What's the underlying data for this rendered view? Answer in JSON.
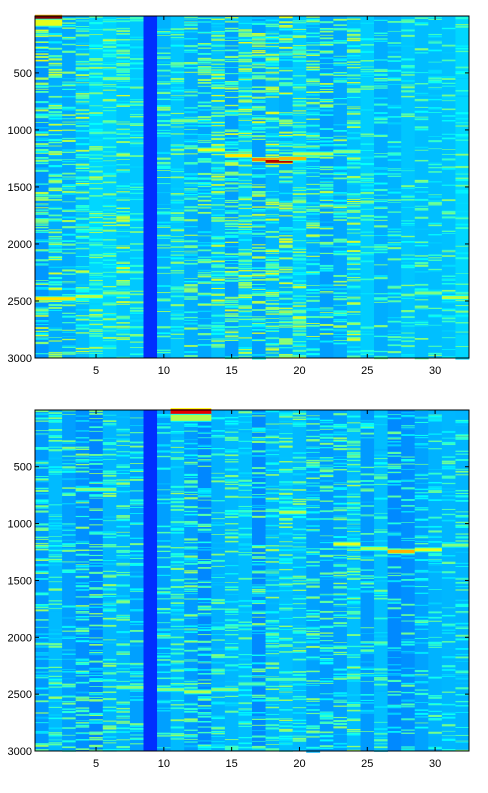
{
  "chart_data": [
    {
      "type": "heatmap",
      "title": "",
      "xlabel": "",
      "ylabel": "",
      "xlim": [
        0.5,
        32.5
      ],
      "ylim": [
        3000,
        1
      ],
      "x_ticks": [
        5,
        10,
        15,
        20,
        25,
        30
      ],
      "y_ticks": [
        500,
        1000,
        1500,
        2000,
        2500,
        3000
      ],
      "colormap": "jet",
      "columns": 32,
      "rows": 3000,
      "background_level": 0.32,
      "dark_columns": [
        9
      ],
      "column_texture": [
        0.9,
        0.8,
        0.6,
        0.8,
        0.6,
        0.7,
        0.8,
        0.5,
        0.3,
        0.5,
        0.6,
        0.6,
        0.6,
        0.8,
        0.8,
        0.9,
        0.9,
        0.9,
        0.9,
        0.8,
        0.7,
        0.7,
        0.6,
        0.8,
        0.4,
        0.4,
        0.4,
        0.4,
        0.4,
        0.4,
        0.4,
        0.4
      ],
      "features": [
        {
          "x_range": [
            1,
            2
          ],
          "y": 25,
          "value": 1.0
        },
        {
          "x_range": [
            1,
            2
          ],
          "y": 60,
          "value": 0.6
        },
        {
          "x_range": [
            13,
            14
          ],
          "y": 1175,
          "value": 0.6
        },
        {
          "x_range": [
            15,
            16
          ],
          "y": 1225,
          "value": 0.65
        },
        {
          "x_range": [
            17,
            18
          ],
          "y": 1260,
          "value": 0.75
        },
        {
          "x_range": [
            18,
            19
          ],
          "y": 1275,
          "value": 0.95
        },
        {
          "x_range": [
            19,
            20
          ],
          "y": 1250,
          "value": 0.7
        },
        {
          "x_range": [
            20,
            22
          ],
          "y": 1210,
          "value": 0.55
        },
        {
          "x_range": [
            23,
            24
          ],
          "y": 1190,
          "value": 0.5
        },
        {
          "x_range": [
            1,
            3
          ],
          "y": 2480,
          "value": 0.65
        },
        {
          "x_range": [
            4,
            5
          ],
          "y": 2460,
          "value": 0.55
        },
        {
          "x_range": [
            6,
            7
          ],
          "y": 2430,
          "value": 0.5
        },
        {
          "x_range": [
            29,
            30
          ],
          "y": 2430,
          "value": 0.5
        },
        {
          "x_range": [
            31,
            32
          ],
          "y": 2470,
          "value": 0.55
        },
        {
          "x_range": [
            6,
            7
          ],
          "y": 550,
          "value": 0.5
        },
        {
          "x_range": [
            11,
            12
          ],
          "y": 920,
          "value": 0.5
        }
      ]
    },
    {
      "type": "heatmap",
      "title": "",
      "xlabel": "",
      "ylabel": "",
      "xlim": [
        0.5,
        32.5
      ],
      "ylim": [
        3000,
        1
      ],
      "x_ticks": [
        5,
        10,
        15,
        20,
        25,
        30
      ],
      "y_ticks": [
        500,
        1000,
        1500,
        2000,
        2500,
        3000
      ],
      "colormap": "jet",
      "columns": 32,
      "rows": 3000,
      "background_level": 0.3,
      "dark_columns": [
        9
      ],
      "column_texture": [
        0.6,
        0.6,
        0.5,
        0.6,
        0.6,
        0.6,
        0.6,
        0.5,
        0.2,
        0.4,
        0.6,
        0.6,
        0.6,
        0.5,
        0.6,
        0.5,
        0.6,
        0.7,
        0.7,
        0.6,
        0.6,
        0.6,
        0.6,
        0.7,
        0.4,
        0.4,
        0.4,
        0.4,
        0.4,
        0.4,
        0.4,
        0.5
      ],
      "features": [
        {
          "x_range": [
            11,
            13
          ],
          "y": 20,
          "value": 0.9
        },
        {
          "x_range": [
            11,
            13
          ],
          "y": 70,
          "value": 0.55
        },
        {
          "x_range": [
            23,
            24
          ],
          "y": 1180,
          "value": 0.6
        },
        {
          "x_range": [
            25,
            26
          ],
          "y": 1220,
          "value": 0.55
        },
        {
          "x_range": [
            27,
            28
          ],
          "y": 1245,
          "value": 0.7
        },
        {
          "x_range": [
            29,
            30
          ],
          "y": 1230,
          "value": 0.6
        },
        {
          "x_range": [
            31,
            32
          ],
          "y": 1190,
          "value": 0.5
        },
        {
          "x_range": [
            19,
            20
          ],
          "y": 900,
          "value": 0.55
        },
        {
          "x_range": [
            7,
            8
          ],
          "y": 2440,
          "value": 0.5
        },
        {
          "x_range": [
            10,
            11
          ],
          "y": 2460,
          "value": 0.5
        },
        {
          "x_range": [
            12,
            13
          ],
          "y": 2480,
          "value": 0.55
        },
        {
          "x_range": [
            14,
            15
          ],
          "y": 2460,
          "value": 0.5
        },
        {
          "x_range": [
            16,
            17
          ],
          "y": 2410,
          "value": 0.45
        },
        {
          "x_range": [
            18,
            20
          ],
          "y": 2370,
          "value": 0.45
        },
        {
          "x_range": [
            4,
            6
          ],
          "y": 700,
          "value": 0.5
        }
      ]
    }
  ]
}
